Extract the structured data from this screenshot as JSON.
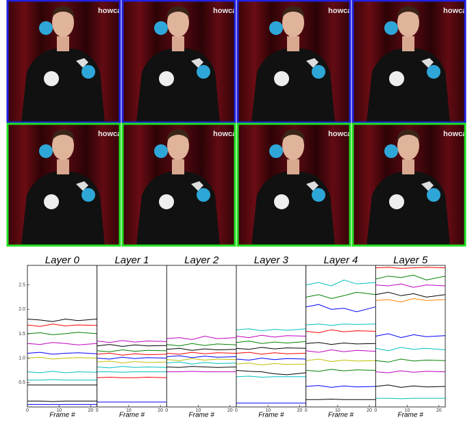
{
  "frames": {
    "rows": [
      {
        "border_color": "#2020e0",
        "watermarks": [
          "howca",
          "howca",
          "howca",
          "howca"
        ]
      },
      {
        "border_color": "#20e020",
        "watermarks": [
          "howca",
          "howca",
          "howca",
          "howca"
        ]
      }
    ]
  },
  "chart_data": [
    {
      "type": "line",
      "title": "Layer 0",
      "xlabel": "Frame #",
      "x": [
        0,
        4,
        8,
        12,
        16,
        22
      ],
      "xlim": [
        0,
        22
      ],
      "xticks": [
        0,
        10,
        20
      ],
      "ylim": [
        0,
        2.9
      ],
      "yticks": [
        {
          "value": 0.5,
          "label": "0.5"
        },
        {
          "value": 1,
          "label": "1.0"
        },
        {
          "value": 1.5,
          "label": "1.5"
        },
        {
          "value": 2,
          "label": "2.0"
        },
        {
          "value": 2.5,
          "label": "2.5"
        }
      ],
      "series": [
        {
          "color": "#000000",
          "values": [
            1.8,
            1.78,
            1.75,
            1.8,
            1.77,
            1.8
          ]
        },
        {
          "color": "#ff0000",
          "values": [
            1.68,
            1.65,
            1.7,
            1.66,
            1.68,
            1.67
          ]
        },
        {
          "color": "#008000",
          "values": [
            1.5,
            1.52,
            1.48,
            1.5,
            1.53,
            1.5
          ]
        },
        {
          "color": "#bf00bf",
          "values": [
            1.3,
            1.28,
            1.32,
            1.3,
            1.27,
            1.3
          ]
        },
        {
          "color": "#0000ff",
          "values": [
            1.1,
            1.12,
            1.08,
            1.1,
            1.11,
            1.09
          ]
        },
        {
          "color": "#bfbf00",
          "values": [
            1.0,
            1.02,
            0.98,
            1.0,
            1.01,
            1.0
          ]
        },
        {
          "color": "#00bfbf",
          "values": [
            0.72,
            0.7,
            0.73,
            0.7,
            0.72,
            0.71
          ]
        },
        {
          "color": "#00bfbf",
          "values": [
            0.55,
            0.55,
            0.56,
            0.55,
            0.55,
            0.55
          ]
        },
        {
          "color": "#000000",
          "values": [
            0.45,
            0.45,
            0.45,
            0.45,
            0.45,
            0.45
          ]
        },
        {
          "color": "#000000",
          "values": [
            0.12,
            0.12,
            0.11,
            0.12,
            0.12,
            0.12
          ]
        },
        {
          "color": "#0000ff",
          "values": [
            0.05,
            0.05,
            0.05,
            0.05,
            0.05,
            0.05
          ]
        }
      ]
    },
    {
      "type": "line",
      "title": "Layer 1",
      "xlabel": "Frame #",
      "x": [
        0,
        4,
        8,
        12,
        16,
        22
      ],
      "xlim": [
        0,
        22
      ],
      "xticks": [
        0,
        10,
        20
      ],
      "ylim": [
        0,
        2.9
      ],
      "series": [
        {
          "color": "#bf00bf",
          "values": [
            1.35,
            1.32,
            1.36,
            1.33,
            1.35,
            1.34
          ]
        },
        {
          "color": "#000000",
          "values": [
            1.25,
            1.28,
            1.24,
            1.27,
            1.25,
            1.26
          ]
        },
        {
          "color": "#008000",
          "values": [
            1.15,
            1.13,
            1.17,
            1.14,
            1.16,
            1.15
          ]
        },
        {
          "color": "#ff0000",
          "values": [
            1.08,
            1.1,
            1.06,
            1.09,
            1.07,
            1.08
          ]
        },
        {
          "color": "#0000ff",
          "values": [
            1.0,
            0.98,
            1.02,
            0.99,
            1.01,
            1.0
          ]
        },
        {
          "color": "#bfbf00",
          "values": [
            0.92,
            0.94,
            0.9,
            0.93,
            0.91,
            0.92
          ]
        },
        {
          "color": "#00bfbf",
          "values": [
            0.82,
            0.8,
            0.83,
            0.81,
            0.82,
            0.81
          ]
        },
        {
          "color": "#00bfbf",
          "values": [
            0.72,
            0.72,
            0.71,
            0.72,
            0.72,
            0.72
          ]
        },
        {
          "color": "#ff0000",
          "values": [
            0.6,
            0.61,
            0.6,
            0.6,
            0.61,
            0.6
          ]
        },
        {
          "color": "#0000ff",
          "values": [
            0.1,
            0.1,
            0.1,
            0.1,
            0.1,
            0.1
          ]
        }
      ]
    },
    {
      "type": "line",
      "title": "Layer 2",
      "xlabel": "Frame #",
      "x": [
        0,
        4,
        8,
        12,
        16,
        22
      ],
      "xlim": [
        0,
        22
      ],
      "xticks": [
        0,
        10,
        20
      ],
      "ylim": [
        0,
        2.9
      ],
      "series": [
        {
          "color": "#bf00bf",
          "values": [
            1.4,
            1.42,
            1.38,
            1.45,
            1.4,
            1.42
          ]
        },
        {
          "color": "#008000",
          "values": [
            1.28,
            1.25,
            1.3,
            1.26,
            1.29,
            1.27
          ]
        },
        {
          "color": "#000000",
          "values": [
            1.18,
            1.2,
            1.16,
            1.19,
            1.17,
            1.18
          ]
        },
        {
          "color": "#ff0000",
          "values": [
            1.1,
            1.08,
            1.12,
            1.09,
            1.11,
            1.1
          ]
        },
        {
          "color": "#0000ff",
          "values": [
            1.03,
            1.05,
            1.01,
            1.04,
            1.02,
            1.03
          ]
        },
        {
          "color": "#bfbf00",
          "values": [
            0.97,
            0.95,
            0.99,
            0.96,
            0.98,
            0.97
          ]
        },
        {
          "color": "#00bfbf",
          "values": [
            0.9,
            0.92,
            0.88,
            0.91,
            0.89,
            0.9
          ]
        },
        {
          "color": "#000000",
          "values": [
            0.82,
            0.81,
            0.83,
            0.82,
            0.81,
            0.82
          ]
        },
        {
          "color": "#bf00bf",
          "values": [
            0.72,
            0.72,
            0.73,
            0.72,
            0.72,
            0.72
          ]
        }
      ]
    },
    {
      "type": "line",
      "title": "Layer 3",
      "xlabel": "Frame #",
      "x": [
        0,
        4,
        8,
        12,
        16,
        22
      ],
      "xlim": [
        0,
        22
      ],
      "xticks": [
        0,
        10,
        20
      ],
      "ylim": [
        0,
        2.9
      ],
      "series": [
        {
          "color": "#00bfbf",
          "values": [
            1.58,
            1.6,
            1.56,
            1.59,
            1.57,
            1.6
          ]
        },
        {
          "color": "#bf00bf",
          "values": [
            1.45,
            1.42,
            1.47,
            1.43,
            1.46,
            1.45
          ]
        },
        {
          "color": "#008000",
          "values": [
            1.32,
            1.35,
            1.3,
            1.33,
            1.31,
            1.34
          ]
        },
        {
          "color": "#000000",
          "values": [
            1.2,
            1.18,
            1.22,
            1.19,
            1.21,
            1.2
          ]
        },
        {
          "color": "#ff0000",
          "values": [
            1.1,
            1.12,
            1.08,
            1.11,
            1.09,
            1.1
          ]
        },
        {
          "color": "#0000ff",
          "values": [
            0.98,
            0.96,
            1.0,
            0.97,
            0.99,
            0.98
          ]
        },
        {
          "color": "#bfbf00",
          "values": [
            0.88,
            0.9,
            0.86,
            0.89,
            0.87,
            0.88
          ]
        },
        {
          "color": "#000000",
          "values": [
            0.75,
            0.73,
            0.72,
            0.68,
            0.66,
            0.7
          ]
        },
        {
          "color": "#00bfbf",
          "values": [
            0.62,
            0.63,
            0.61,
            0.62,
            0.62,
            0.62
          ]
        },
        {
          "color": "#0000ff",
          "values": [
            0.08,
            0.08,
            0.08,
            0.08,
            0.08,
            0.08
          ]
        }
      ]
    },
    {
      "type": "line",
      "title": "Layer 4",
      "xlabel": "Frame #",
      "x": [
        0,
        4,
        8,
        12,
        16,
        22
      ],
      "xlim": [
        0,
        22
      ],
      "xticks": [
        0,
        10,
        20
      ],
      "ylim": [
        0,
        2.9
      ],
      "series": [
        {
          "color": "#00bfbf",
          "values": [
            2.5,
            2.55,
            2.48,
            2.6,
            2.52,
            2.55
          ]
        },
        {
          "color": "#008000",
          "values": [
            2.25,
            2.3,
            2.22,
            2.28,
            2.35,
            2.3
          ]
        },
        {
          "color": "#0000ff",
          "values": [
            2.05,
            2.1,
            2.0,
            2.02,
            1.95,
            2.05
          ]
        },
        {
          "color": "#00bfbf",
          "values": [
            1.68,
            1.7,
            1.67,
            1.7,
            1.69,
            1.7
          ]
        },
        {
          "color": "#ff0000",
          "values": [
            1.55,
            1.52,
            1.58,
            1.54,
            1.56,
            1.55
          ]
        },
        {
          "color": "#000000",
          "values": [
            1.3,
            1.32,
            1.28,
            1.31,
            1.29,
            1.3
          ]
        },
        {
          "color": "#bf00bf",
          "values": [
            1.15,
            1.12,
            1.17,
            1.13,
            1.16,
            1.14
          ]
        },
        {
          "color": "#bfbf00",
          "values": [
            0.95,
            0.98,
            0.93,
            0.96,
            0.94,
            0.95
          ]
        },
        {
          "color": "#008000",
          "values": [
            0.75,
            0.73,
            0.77,
            0.74,
            0.76,
            0.75
          ]
        },
        {
          "color": "#0000ff",
          "values": [
            0.42,
            0.44,
            0.4,
            0.43,
            0.41,
            0.42
          ]
        },
        {
          "color": "#000000",
          "values": [
            0.15,
            0.15,
            0.16,
            0.15,
            0.15,
            0.15
          ]
        }
      ]
    },
    {
      "type": "line",
      "title": "Layer 5",
      "xlabel": "Frame #",
      "x": [
        0,
        4,
        8,
        12,
        16,
        22
      ],
      "xlim": [
        0,
        22
      ],
      "xticks": [
        0,
        10,
        20
      ],
      "ylim": [
        0,
        2.9
      ],
      "series": [
        {
          "color": "#ff0000",
          "values": [
            2.85,
            2.86,
            2.84,
            2.85,
            2.86,
            2.85
          ]
        },
        {
          "color": "#008000",
          "values": [
            2.62,
            2.68,
            2.65,
            2.7,
            2.6,
            2.68
          ]
        },
        {
          "color": "#bf00bf",
          "values": [
            2.5,
            2.48,
            2.52,
            2.45,
            2.5,
            2.48
          ]
        },
        {
          "color": "#000000",
          "values": [
            2.3,
            2.35,
            2.28,
            2.32,
            2.25,
            2.3
          ]
        },
        {
          "color": "#ff8000",
          "values": [
            2.18,
            2.2,
            2.15,
            2.22,
            2.18,
            2.2
          ]
        },
        {
          "color": "#0000ff",
          "values": [
            1.45,
            1.5,
            1.42,
            1.48,
            1.44,
            1.46
          ]
        },
        {
          "color": "#00bfbf",
          "values": [
            1.2,
            1.15,
            1.22,
            1.18,
            1.2,
            1.17
          ]
        },
        {
          "color": "#008000",
          "values": [
            0.95,
            0.92,
            0.98,
            0.94,
            0.96,
            0.95
          ]
        },
        {
          "color": "#bf00bf",
          "values": [
            0.72,
            0.7,
            0.74,
            0.71,
            0.73,
            0.72
          ]
        },
        {
          "color": "#000000",
          "values": [
            0.42,
            0.45,
            0.4,
            0.43,
            0.41,
            0.42
          ]
        },
        {
          "color": "#00bfbf",
          "values": [
            0.18,
            0.18,
            0.17,
            0.18,
            0.18,
            0.18
          ]
        }
      ]
    }
  ]
}
